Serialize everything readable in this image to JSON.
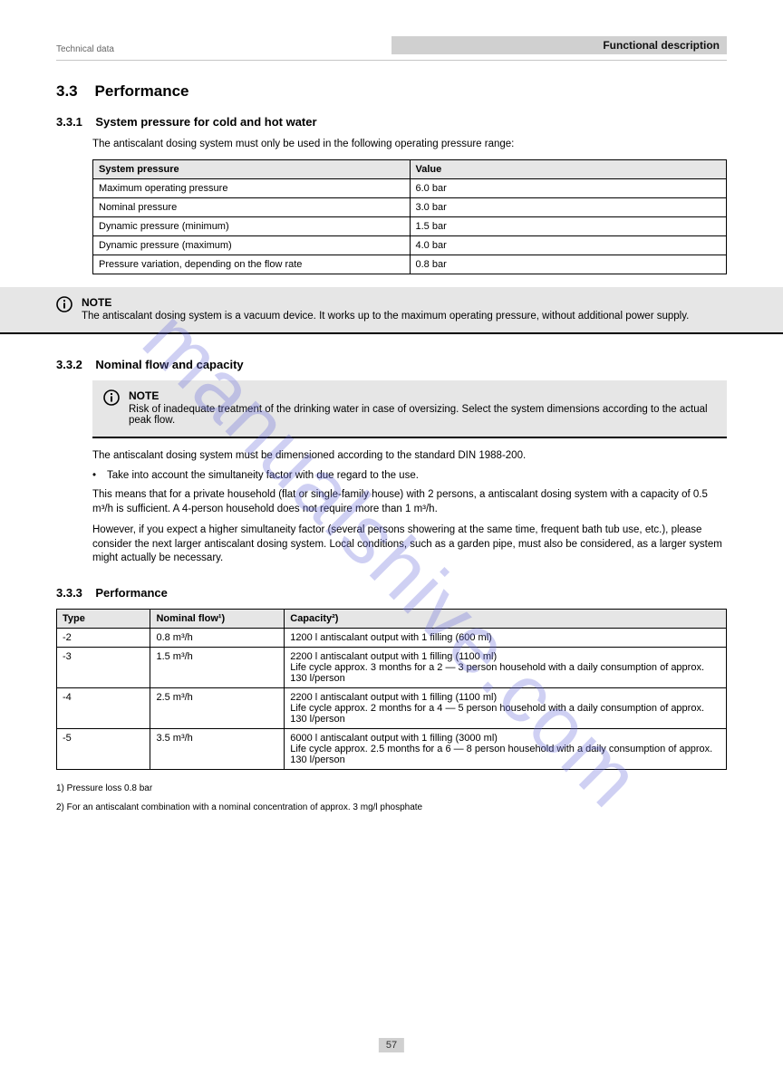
{
  "header": {
    "left": "Technical data",
    "right": "Functional description"
  },
  "watermark": "manualshive.com",
  "s1": {
    "heading_num": "3.3",
    "heading_text": "Performance",
    "sub_num": "3.3.1",
    "sub_text": "System pressure for cold and hot water",
    "intro": "The antiscalant dosing system must only be used in the following operating pressure range:",
    "table": {
      "headers": [
        "System pressure",
        "Value"
      ],
      "rows": [
        [
          "Maximum operating pressure",
          "6.0 bar"
        ],
        [
          "Nominal pressure",
          "3.0 bar"
        ],
        [
          "Dynamic pressure (minimum)",
          "1.5 bar"
        ],
        [
          "Dynamic pressure (maximum)",
          "4.0 bar"
        ],
        [
          "Pressure variation, depending on the flow rate",
          "0.8 bar"
        ]
      ]
    },
    "note": {
      "title": "NOTE",
      "text": "The antiscalant dosing system is a vacuum device. It works up to the maximum operating pressure, without additional power supply."
    }
  },
  "s2": {
    "sub_num": "3.3.2",
    "sub_text": "Nominal flow and capacity",
    "note": {
      "title": "NOTE",
      "text": "Risk of inadequate treatment of the drinking water in case of oversizing. Select the system dimensions according to the actual peak flow."
    },
    "para1": "The antiscalant dosing system must be dimensioned according to the standard DIN 1988-200.",
    "bullets": [
      "Take into account the simultaneity factor with due regard to the use."
    ],
    "para2": "This means that for a private household (flat or single-family house) with 2 persons, a antiscalant dosing system with a capacity of 0.5 m³/h is sufficient. A 4-person household does not require more than 1 m³/h.",
    "para3": "However, if you expect a higher simultaneity factor (several persons showering at the same time, frequent bath tub use, etc.), please consider the next larger antiscalant dosing system. Local conditions, such as a garden pipe, must also be considered, as a larger system might actually be necessary."
  },
  "s3": {
    "sub_num": "3.3.3",
    "sub_text": "Performance",
    "table": {
      "headers": [
        "Type",
        "Nominal flow¹)",
        "Capacity²)"
      ],
      "widths": [
        "16%",
        "20%",
        "64%"
      ],
      "rows": [
        [
          "-2",
          "0.8 m³/h",
          "1200 l antiscalant output with 1 filling (600 ml)"
        ],
        [
          "-3",
          "1.5 m³/h",
          "2200 l antiscalant output with 1 filling (1100 ml)\nLife cycle approx. 3 months for a 2 — 3 person household with a daily consumption of approx. 130 l/person"
        ],
        [
          "-4",
          "2.5 m³/h",
          "2200 l antiscalant output with 1 filling (1100 ml)\nLife cycle approx. 2 months for a 4 — 5 person household with a daily consumption of approx. 130 l/person"
        ],
        [
          "-5",
          "3.5 m³/h",
          "6000 l antiscalant output with 1 filling (3000 ml)\nLife cycle approx. 2.5 months for a 6 — 8 person household with a daily consumption of approx. 130 l/person"
        ]
      ]
    },
    "footnote1": "1) Pressure loss 0.8 bar",
    "footnote2": "2) For an antiscalant combination with a nominal concentration of approx. 3 mg/l phosphate"
  },
  "page_number": "57"
}
